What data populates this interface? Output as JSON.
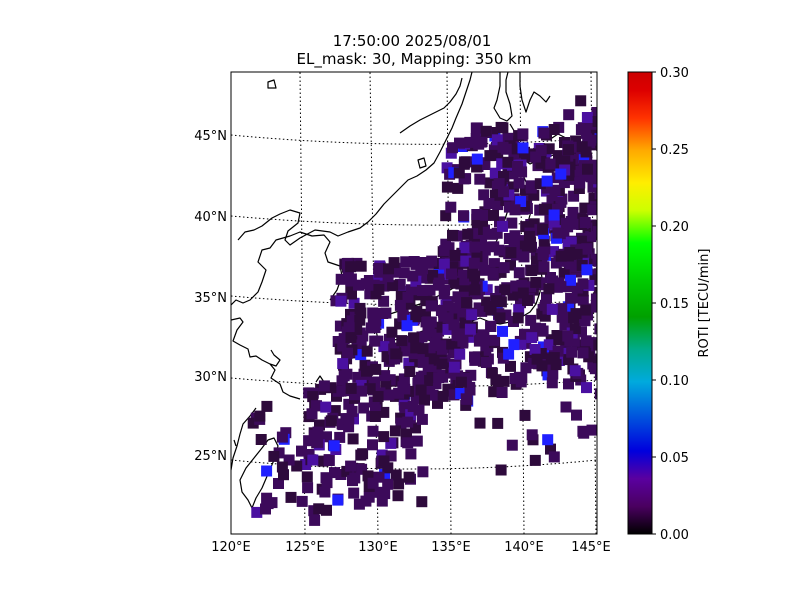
{
  "title_line1": "17:50:00 2025/08/01",
  "title_line2": "EL_mask: 30, Mapping: 350 km",
  "colorbar": {
    "label": "ROTI [TECU/min]",
    "min": 0.0,
    "max": 0.3,
    "ticks": [
      "0.00",
      "0.05",
      "0.10",
      "0.15",
      "0.20",
      "0.25",
      "0.30"
    ],
    "colormap": "nipy_spectral"
  },
  "map": {
    "lon_range": [
      120,
      145
    ],
    "lat_range": [
      20,
      49
    ],
    "lon_ticks": [
      "120°E",
      "125°E",
      "130°E",
      "135°E",
      "140°E",
      "145°E"
    ],
    "lat_ticks": [
      "25°N",
      "30°N",
      "35°N",
      "40°N",
      "45°N"
    ],
    "graticule_style": "dotted",
    "features": [
      "coastline-japan",
      "coastline-korea",
      "coastline-china",
      "coastline-taiwan",
      "coastline-sakhalin"
    ],
    "data_value_typical": 0.03,
    "data_value_range": [
      0.0,
      0.06
    ]
  },
  "colors": {
    "dark_purple": "#2e0a3c",
    "purple": "#3c0a5a",
    "violet": "#4a10a0",
    "blue": "#2020ff"
  }
}
